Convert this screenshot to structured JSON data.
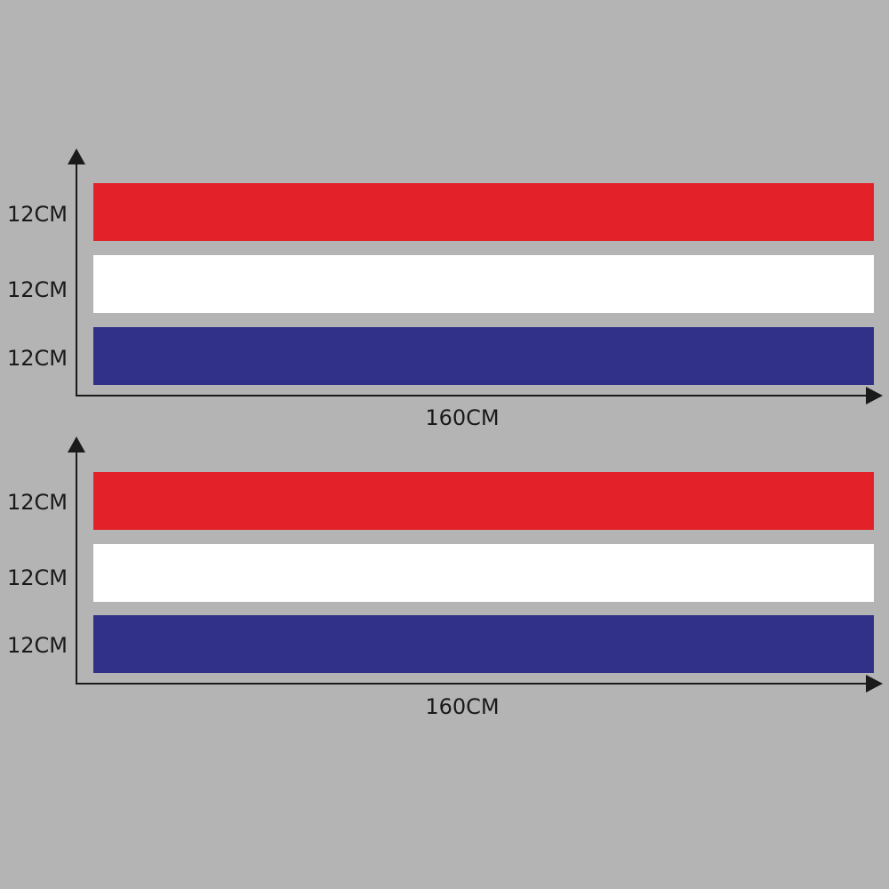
{
  "colors": {
    "background": "#b4b4b4",
    "red": "#e32129",
    "white": "#ffffff",
    "blue": "#31318a",
    "axis": "#1a1a1a"
  },
  "diagrams": [
    {
      "stripes": [
        {
          "color": "red",
          "height_label": "12CM"
        },
        {
          "color": "white",
          "height_label": "12CM"
        },
        {
          "color": "blue",
          "height_label": "12CM"
        }
      ],
      "width_label": "160CM"
    },
    {
      "stripes": [
        {
          "color": "red",
          "height_label": "12CM"
        },
        {
          "color": "white",
          "height_label": "12CM"
        },
        {
          "color": "blue",
          "height_label": "12CM"
        }
      ],
      "width_label": "160CM"
    }
  ]
}
